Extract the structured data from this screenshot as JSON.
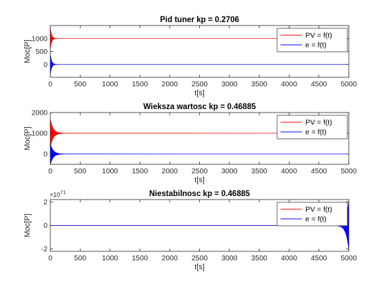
{
  "chart_data": [
    {
      "type": "line",
      "title": "Pid tuner kp = 0.2706",
      "xlabel": "t[s]",
      "ylabel": "Moc[P]",
      "xlim": [
        0,
        5000
      ],
      "ylim": [
        -500,
        1500
      ],
      "xticks": [
        0,
        500,
        1000,
        1500,
        2000,
        2500,
        3000,
        3500,
        4000,
        4500,
        5000
      ],
      "yticks": [
        0,
        500,
        1000
      ],
      "ytick_labels": [
        "0",
        "500",
        "1000"
      ],
      "y_exponent": "",
      "legend": "top-right",
      "series": [
        {
          "name": "PV = f(t)",
          "color": "#ff0000",
          "steady": 1000,
          "osc": {
            "start": 0,
            "amp0": 450,
            "decay": 20,
            "period": 4
          }
        },
        {
          "name": "e = f(t)",
          "color": "#0000ff",
          "steady": 0,
          "osc": {
            "start": 0,
            "amp0": 420,
            "decay": 20,
            "period": 4
          }
        }
      ]
    },
    {
      "type": "line",
      "title": "Wieksza wartosc kp = 0.46885",
      "xlabel": "t[s]",
      "ylabel": "Moc[P]",
      "xlim": [
        0,
        5000
      ],
      "ylim": [
        -500,
        2000
      ],
      "xticks": [
        0,
        500,
        1000,
        1500,
        2000,
        2500,
        3000,
        3500,
        4000,
        4500,
        5000
      ],
      "yticks": [
        0,
        1000,
        2000
      ],
      "ytick_labels": [
        "0",
        "1000",
        "2000"
      ],
      "y_exponent": "",
      "legend": "top-right",
      "series": [
        {
          "name": "PV = f(t)",
          "color": "#ff0000",
          "steady": 1000,
          "osc": {
            "start": 0,
            "amp0": 700,
            "decay": 45,
            "period": 4
          }
        },
        {
          "name": "e = f(t)",
          "color": "#0000ff",
          "steady": 0,
          "osc": {
            "start": 0,
            "amp0": 520,
            "decay": 45,
            "period": 4
          }
        }
      ]
    },
    {
      "type": "line",
      "title": "Niestabilnosc kp = 0.46885",
      "xlabel": "t[s]",
      "ylabel": "Moc[P]",
      "xlim": [
        0,
        5000
      ],
      "ylim": [
        -2.2e+71,
        2.2e+71
      ],
      "xticks": [
        0,
        500,
        1000,
        1500,
        2000,
        2500,
        3000,
        3500,
        4000,
        4500,
        5000
      ],
      "yticks": [
        -2e+71,
        0,
        2e+71
      ],
      "ytick_labels": [
        "-2",
        "0",
        "2"
      ],
      "y_exponent": "71",
      "legend": "top-right",
      "series": [
        {
          "name": "PV = f(t)",
          "color": "#ff0000",
          "steady": 0,
          "osc": {
            "start": 4780,
            "amp0": 2.1e+71,
            "growth": 45,
            "period": 4
          }
        },
        {
          "name": "e = f(t)",
          "color": "#0000ff",
          "steady": 0,
          "osc": {
            "start": 4780,
            "amp0": 2e+71,
            "growth": 45,
            "period": 4
          }
        }
      ]
    }
  ]
}
